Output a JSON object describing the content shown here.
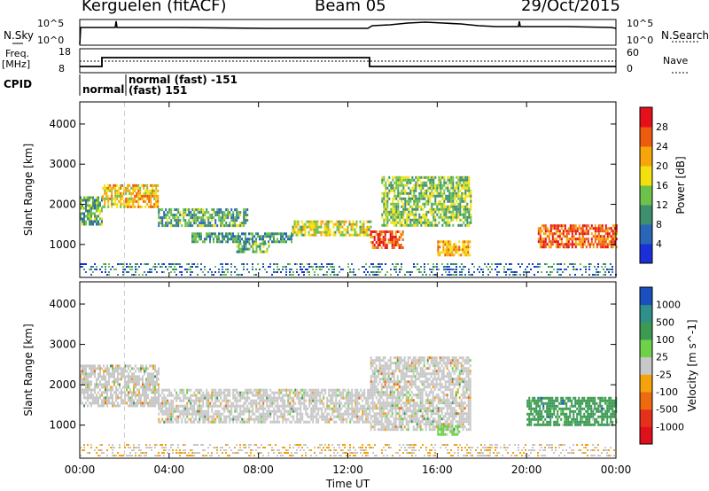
{
  "header": {
    "radar": "Kerguelen (fitACF)",
    "beam": "Beam 05",
    "date": "29/Oct/2015"
  },
  "noise_panel": {
    "left_label": "N.Sky",
    "right_label": "N.Search",
    "ticks_left": [
      "10^5",
      "10^0"
    ],
    "ticks_right": [
      "10^5",
      "10^0"
    ]
  },
  "freq_panel": {
    "left_label_1": "Freq.",
    "left_label_2": "[MHz]",
    "right_label": "Nave",
    "ticks_left": [
      "18",
      "8"
    ],
    "ticks_right": [
      "60",
      "0"
    ]
  },
  "cpid": {
    "label": "CPID",
    "modes": [
      "normal",
      "normal (fast) -151",
      "(fast) 151"
    ]
  },
  "chart_data": [
    {
      "type": "heatmap",
      "title": "",
      "xlabel": "Time UT",
      "ylabel": "Slant Range [km]",
      "x_ticks": [
        "00:00",
        "04:00",
        "08:00",
        "12:00",
        "16:00",
        "20:00",
        "00:00"
      ],
      "y_ticks": [
        1000,
        2000,
        3000,
        4000
      ],
      "ylim": [
        180,
        4550
      ],
      "colorbar": {
        "label": "Power [dB]",
        "ticks": [
          4,
          8,
          12,
          16,
          20,
          24,
          28
        ],
        "range": [
          0,
          32
        ],
        "colors": [
          "#1a2fd8",
          "#2a66b8",
          "#3f8f6e",
          "#6ec24a",
          "#f3e00f",
          "#f6a50a",
          "#ee5a0e",
          "#e5101a"
        ]
      },
      "regions_hours_km": [
        {
          "t": [
            0.0,
            1.0
          ],
          "r": [
            1500,
            2200
          ],
          "level": 10
        },
        {
          "t": [
            1.0,
            3.5
          ],
          "r": [
            1950,
            2500
          ],
          "level": 18
        },
        {
          "t": [
            3.5,
            7.5
          ],
          "r": [
            1450,
            1900
          ],
          "level": 10
        },
        {
          "t": [
            5.0,
            9.5
          ],
          "r": [
            1100,
            1300
          ],
          "level": 8
        },
        {
          "t": [
            7.0,
            8.5
          ],
          "r": [
            850,
            1050
          ],
          "level": 11
        },
        {
          "t": [
            9.5,
            13.0
          ],
          "r": [
            1250,
            1600
          ],
          "level": 15
        },
        {
          "t": [
            13.0,
            14.5
          ],
          "r": [
            900,
            1350
          ],
          "level": 24
        },
        {
          "t": [
            13.5,
            17.5
          ],
          "r": [
            1500,
            2700
          ],
          "level": 12
        },
        {
          "t": [
            16.0,
            17.5
          ],
          "r": [
            750,
            1100
          ],
          "level": 20
        },
        {
          "t": [
            20.5,
            24.0
          ],
          "r": [
            950,
            1500
          ],
          "level": 24
        }
      ]
    },
    {
      "type": "heatmap",
      "title": "",
      "xlabel": "Time UT",
      "ylabel": "Slant Range [km]",
      "x_ticks": [
        "00:00",
        "04:00",
        "08:00",
        "12:00",
        "16:00",
        "20:00",
        "00:00"
      ],
      "y_ticks": [
        1000,
        2000,
        3000,
        4000
      ],
      "ylim": [
        180,
        4550
      ],
      "colorbar": {
        "label": "Velocity [m s^-1]",
        "ticks": [
          1000,
          500,
          100,
          25,
          -25,
          -100,
          -500,
          -1000
        ],
        "colors": [
          "#1a4fc0",
          "#2f8f8a",
          "#3c9a52",
          "#6fd049",
          "#c8c8c8",
          "#f5a20d",
          "#ee6a0f",
          "#e6301a",
          "#e0101a"
        ]
      },
      "regions_hours_km": [
        {
          "t": [
            0.0,
            3.5
          ],
          "r": [
            1500,
            2500
          ],
          "v": 0
        },
        {
          "t": [
            3.5,
            13.0
          ],
          "r": [
            1100,
            1900
          ],
          "v": 0
        },
        {
          "t": [
            13.0,
            17.5
          ],
          "r": [
            900,
            2700
          ],
          "v": 0
        },
        {
          "t": [
            16.0,
            17.0
          ],
          "r": [
            750,
            1000
          ],
          "v": 100
        },
        {
          "t": [
            20.0,
            24.0
          ],
          "r": [
            1000,
            1700
          ],
          "v": 300
        }
      ]
    }
  ]
}
